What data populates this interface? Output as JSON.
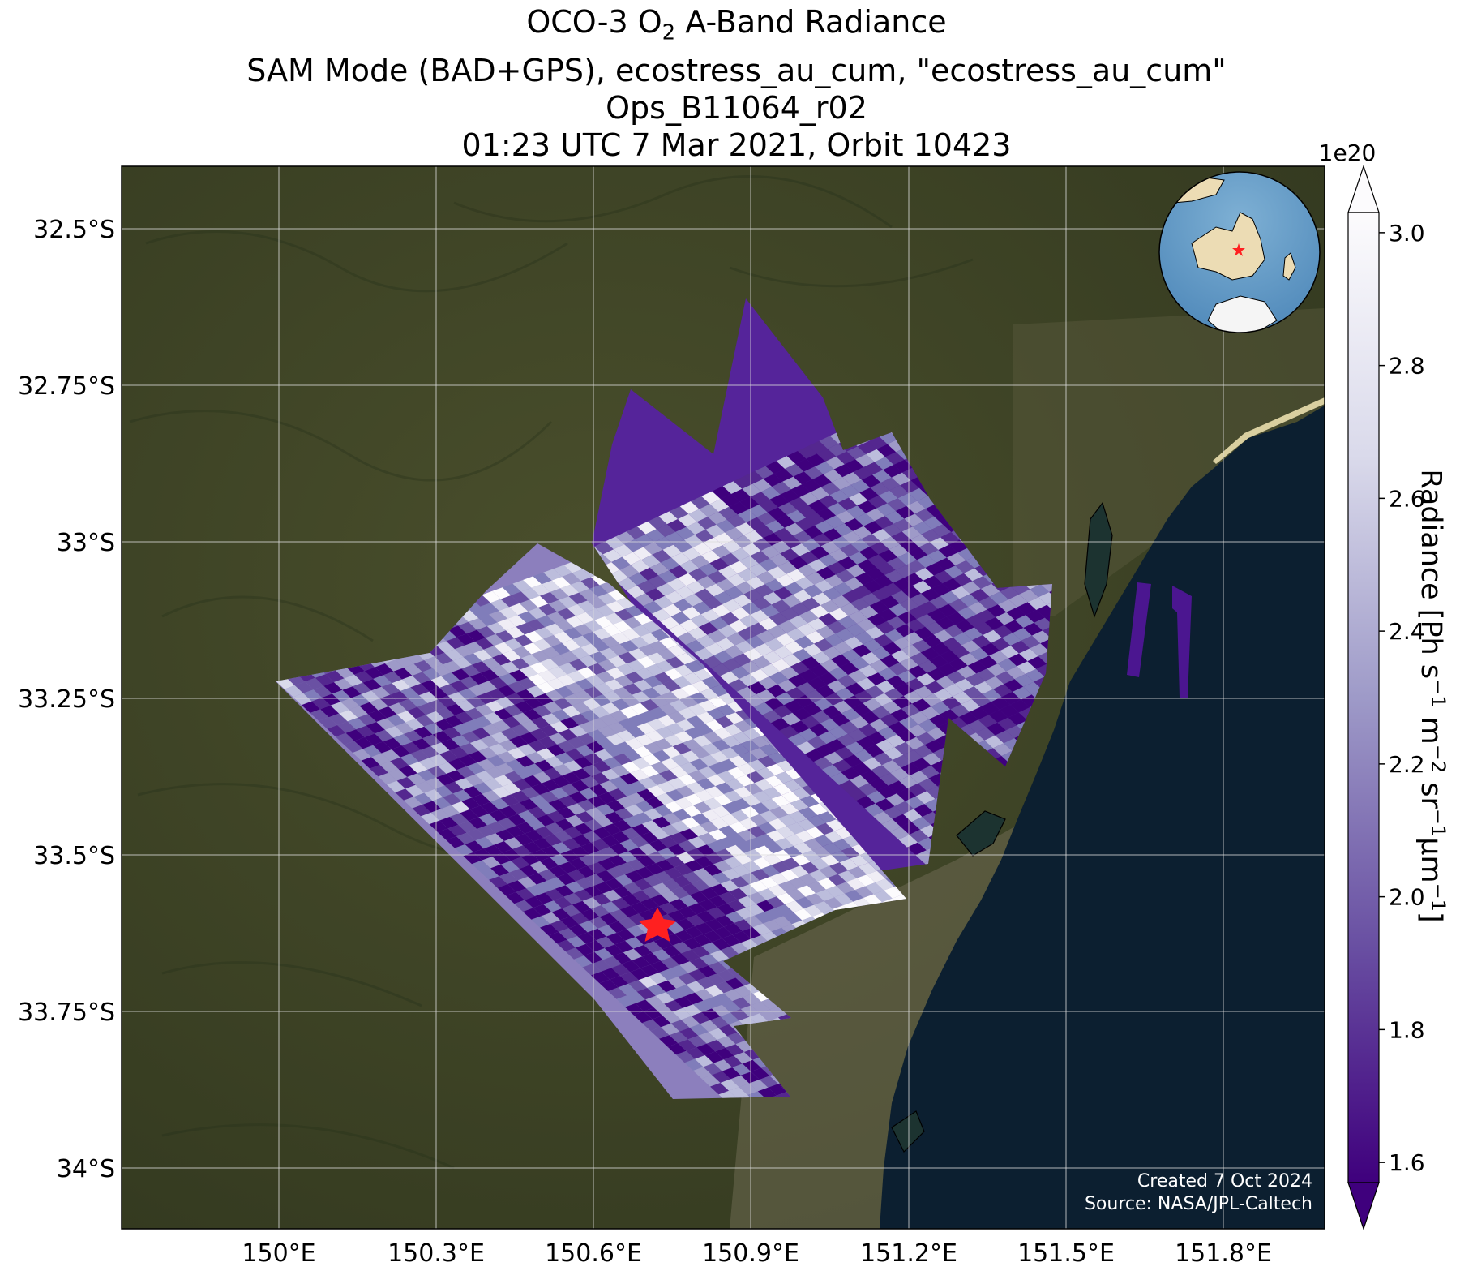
{
  "title": {
    "line1_prefix": "OCO-3 O",
    "line1_sub": "2",
    "line1_suffix": " A-Band Radiance",
    "line2": "SAM Mode (BAD+GPS), ecostress_au_cum, \"ecostress_au_cum\"",
    "line3": "Ops_B11064_r02",
    "line4": "01:23 UTC 7 Mar 2021, Orbit 10423"
  },
  "map": {
    "lon_ticks": [
      "150°E",
      "150.3°E",
      "150.6°E",
      "150.9°E",
      "151.2°E",
      "151.5°E",
      "151.8°E"
    ],
    "lat_ticks": [
      "32.5°S",
      "32.75°S",
      "33°S",
      "33.25°S",
      "33.5°S",
      "33.75°S",
      "34°S"
    ],
    "target_marker": {
      "lon": 150.72,
      "lat": -33.62,
      "color": "#ff2020"
    },
    "credits": [
      "Created 7 Oct 2024",
      "Source: NASA/JPL-Caltech"
    ],
    "inset": "globe-locator"
  },
  "colorbar": {
    "offset_label": "1e20",
    "ticks": [
      "3.0",
      "2.8",
      "2.6",
      "2.4",
      "2.2",
      "2.0",
      "1.8",
      "1.6"
    ],
    "range": [
      1.5,
      3.1
    ],
    "extend": "both",
    "colormap": "Purples_r",
    "label_text": "Radiance [Ph s",
    "label_sup1": "−1",
    "label_m": " m",
    "label_sup2": "−2",
    "label_sr": " sr",
    "label_sup3": "−1",
    "label_um": "μm",
    "label_sup4": "−1",
    "label_end": "]"
  },
  "colors": {
    "land": "#3e4427",
    "ocean": "#0c1f30",
    "swath_dark": "#45097f",
    "swath_light": "#fcfbfd",
    "grid": "#dcdcdc"
  }
}
